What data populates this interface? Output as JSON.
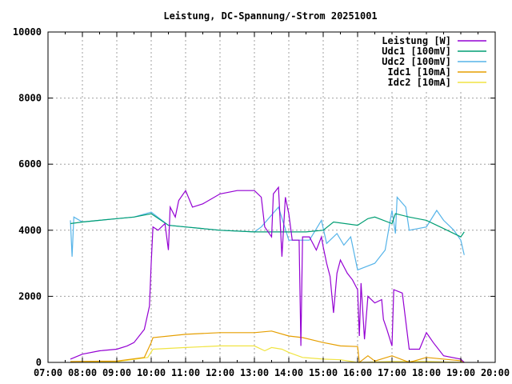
{
  "chart_data": {
    "type": "line",
    "title": "Leistung, DC-Spannung/-Strom 20251001",
    "xlabel": "",
    "ylabel": "",
    "xlim": [
      7,
      20
    ],
    "ylim": [
      0,
      10000
    ],
    "grid": true,
    "legend_position": "top-right",
    "x_ticks": [
      "07:00",
      "08:00",
      "09:00",
      "10:00",
      "11:00",
      "12:00",
      "13:00",
      "14:00",
      "15:00",
      "16:00",
      "17:00",
      "18:00",
      "19:00",
      "20:00"
    ],
    "y_ticks": [
      "0",
      "2000",
      "4000",
      "6000",
      "8000",
      "10000"
    ],
    "series": [
      {
        "name": "Leistung [W]",
        "color": "#9400d3",
        "x": [
          7.65,
          8.0,
          8.5,
          9.0,
          9.3,
          9.5,
          9.8,
          9.95,
          10.0,
          10.05,
          10.2,
          10.4,
          10.5,
          10.55,
          10.7,
          10.8,
          11.0,
          11.2,
          11.5,
          12.0,
          12.5,
          13.0,
          13.2,
          13.3,
          13.5,
          13.55,
          13.7,
          13.8,
          13.9,
          14.0,
          14.1,
          14.3,
          14.35,
          14.4,
          14.6,
          14.8,
          14.95,
          15.0,
          15.1,
          15.2,
          15.3,
          15.4,
          15.5,
          15.7,
          15.85,
          16.0,
          16.05,
          16.1,
          16.2,
          16.3,
          16.5,
          16.7,
          16.75,
          16.85,
          17.0,
          17.05,
          17.3,
          17.5,
          17.8,
          18.0,
          18.2,
          18.5,
          19.0,
          19.1
        ],
        "y": [
          100,
          250,
          350,
          400,
          500,
          600,
          1000,
          1700,
          3000,
          4100,
          4000,
          4200,
          3400,
          4700,
          4400,
          4900,
          5200,
          4700,
          4800,
          5100,
          5200,
          5200,
          5000,
          4100,
          3800,
          5100,
          5300,
          3200,
          5000,
          4500,
          3700,
          3700,
          500,
          3800,
          3800,
          3400,
          3800,
          3500,
          3000,
          2600,
          1500,
          2700,
          3100,
          2700,
          2500,
          2200,
          800,
          2400,
          700,
          2000,
          1800,
          1900,
          1300,
          1000,
          500,
          2200,
          2100,
          400,
          400,
          900,
          600,
          200,
          100,
          0
        ]
      },
      {
        "name": "Udc1 [100mV]",
        "color": "#009e73",
        "x": [
          7.65,
          8.0,
          8.5,
          9.0,
          9.5,
          10.0,
          10.5,
          11.0,
          12.0,
          13.0,
          14.0,
          14.5,
          15.0,
          15.3,
          16.0,
          16.3,
          16.5,
          17.0,
          17.1,
          17.5,
          18.0,
          18.5,
          19.0,
          19.1
        ],
        "y": [
          4200,
          4250,
          4300,
          4350,
          4400,
          4500,
          4150,
          4100,
          4000,
          3950,
          3950,
          3950,
          4000,
          4250,
          4150,
          4350,
          4400,
          4200,
          4500,
          4400,
          4300,
          4050,
          3800,
          3950
        ]
      },
      {
        "name": "Udc2 [100mV]",
        "color": "#56b4e9",
        "x": [
          7.65,
          7.7,
          7.75,
          8.0,
          8.5,
          9.0,
          9.5,
          10.0,
          10.5,
          11.0,
          12.0,
          13.0,
          13.2,
          13.7,
          14.0,
          14.6,
          14.95,
          15.1,
          15.4,
          15.6,
          15.8,
          16.0,
          16.5,
          16.8,
          17.0,
          17.1,
          17.15,
          17.4,
          17.5,
          18.0,
          18.3,
          18.5,
          18.8,
          19.0,
          19.1
        ],
        "y": [
          4300,
          3200,
          4400,
          4250,
          4300,
          4350,
          4400,
          4550,
          4150,
          4100,
          4000,
          3950,
          4100,
          4700,
          3700,
          3700,
          4300,
          3600,
          3900,
          3550,
          3800,
          2800,
          3000,
          3400,
          4600,
          3900,
          5000,
          4700,
          4000,
          4100,
          4600,
          4300,
          4000,
          3700,
          3250
        ]
      },
      {
        "name": "Idc1 [10mA]",
        "color": "#e69f00",
        "x": [
          7.65,
          9.0,
          9.8,
          10.0,
          10.05,
          11.0,
          12.0,
          13.0,
          13.5,
          14.0,
          14.4,
          15.0,
          15.5,
          16.0,
          16.05,
          16.3,
          16.5,
          17.0,
          17.5,
          18.0,
          19.0,
          19.1
        ],
        "y": [
          30,
          40,
          150,
          600,
          750,
          850,
          900,
          900,
          950,
          800,
          750,
          600,
          500,
          480,
          0,
          200,
          40,
          200,
          0,
          150,
          50,
          0
        ]
      },
      {
        "name": "Idc2 [10mA]",
        "color": "#f0e442",
        "x": [
          7.65,
          9.0,
          9.9,
          10.05,
          11.0,
          12.0,
          13.0,
          13.3,
          13.5,
          13.8,
          14.0,
          14.4,
          15.0,
          15.5,
          16.0,
          17.0,
          18.0,
          19.1
        ],
        "y": [
          0,
          20,
          150,
          400,
          450,
          500,
          500,
          350,
          450,
          400,
          300,
          150,
          100,
          80,
          0,
          30,
          30,
          0
        ]
      }
    ]
  }
}
